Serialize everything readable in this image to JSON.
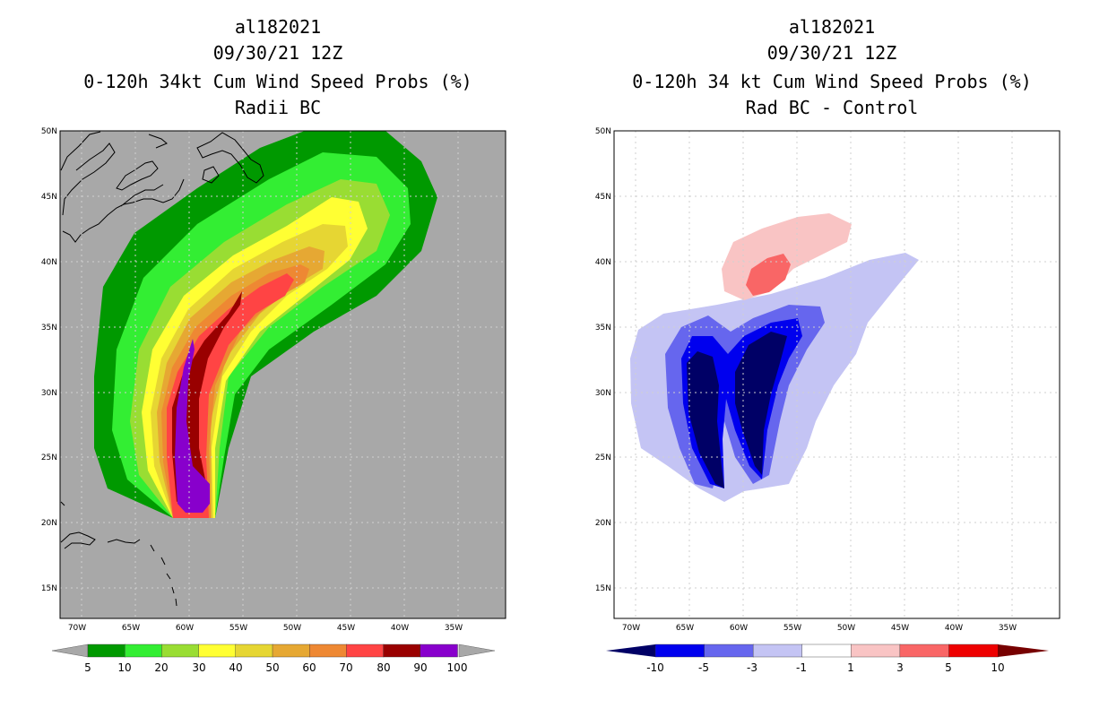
{
  "panels": [
    {
      "storm_id": "al182021",
      "datetime": "09/30/21 12Z",
      "title_line1": "0-120h 34kt Cum Wind Speed Probs (%)",
      "title_line2": "Radii BC",
      "colorbar_labels": [
        "5",
        "10",
        "20",
        "30",
        "40",
        "50",
        "60",
        "70",
        "80",
        "90",
        "100"
      ],
      "colorbar_colors": [
        "#009900",
        "#33ee33",
        "#99dd33",
        "#ffff33",
        "#e6d633",
        "#e6a833",
        "#ee8833",
        "#ff4444",
        "#990000",
        "#8800cc"
      ],
      "background_color": "#a8a8a8"
    },
    {
      "storm_id": "al182021",
      "datetime": "09/30/21 12Z",
      "title_line1": "0-120h 34 kt Cum Wind Speed Probs (%)",
      "title_line2": "Rad BC - Control",
      "colorbar_labels": [
        "-10",
        "-5",
        "-3",
        "-1",
        "1",
        "3",
        "5",
        "10"
      ],
      "colorbar_colors": [
        "#000066",
        "#0000ee",
        "#6666ee",
        "#c4c4f4",
        "#ffffff",
        "#f9c4c4",
        "#f96666",
        "#ee0000",
        "#770000"
      ],
      "background_color": "#ffffff"
    }
  ],
  "axes": {
    "lat_labels": [
      "50N",
      "45N",
      "40N",
      "35N",
      "30N",
      "25N",
      "20N",
      "15N"
    ],
    "lon_labels": [
      "70W",
      "65W",
      "60W",
      "55W",
      "50W",
      "45W",
      "40W",
      "35W"
    ]
  }
}
